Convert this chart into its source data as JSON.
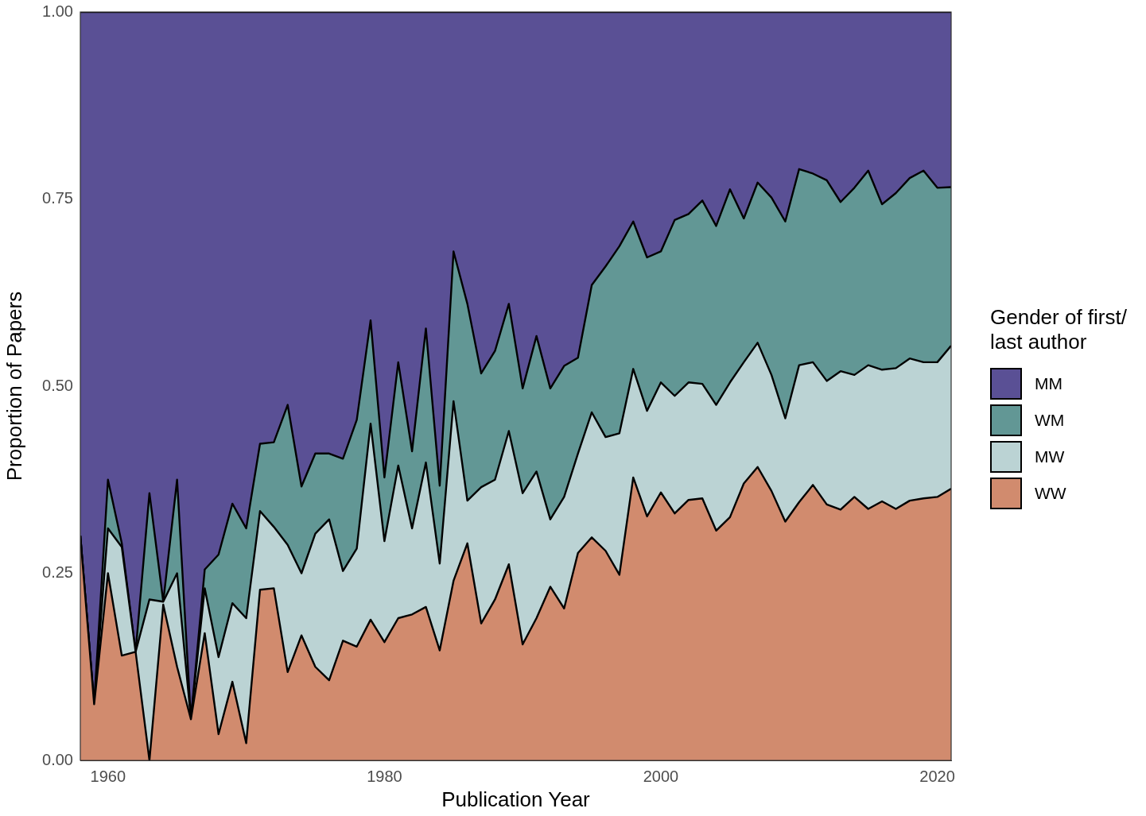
{
  "chart_data": {
    "type": "area",
    "xlabel": "Publication Year",
    "ylabel": "Proportion of Papers",
    "legend_title": "Gender of first/ last author",
    "legend": "right",
    "stacked": true,
    "x": [
      1958,
      1959,
      1960,
      1961,
      1962,
      1963,
      1964,
      1965,
      1966,
      1967,
      1968,
      1969,
      1970,
      1971,
      1972,
      1973,
      1974,
      1975,
      1976,
      1977,
      1978,
      1979,
      1980,
      1981,
      1982,
      1983,
      1984,
      1985,
      1986,
      1987,
      1988,
      1989,
      1990,
      1991,
      1992,
      1993,
      1994,
      1995,
      1996,
      1997,
      1998,
      1999,
      2000,
      2001,
      2002,
      2003,
      2004,
      2005,
      2006,
      2007,
      2008,
      2009,
      2010,
      2011,
      2012,
      2013,
      2014,
      2015,
      2016,
      2017,
      2018,
      2019,
      2020,
      2021
    ],
    "xlim": [
      1958,
      2021
    ],
    "xticks": [
      1960,
      1980,
      2000,
      2020
    ],
    "ylim": [
      0,
      1
    ],
    "yticks": [
      {
        "value": 0,
        "label": "0.00"
      },
      {
        "value": 0.25,
        "label": "0.25"
      },
      {
        "value": 0.5,
        "label": "0.50"
      },
      {
        "value": 0.75,
        "label": "0.75"
      },
      {
        "value": 1,
        "label": "1.00"
      }
    ],
    "series": [
      {
        "name": "WW",
        "color": "#d18b6e",
        "values": [
          0.3,
          0.075,
          0.25,
          0.14,
          0.145,
          0,
          0.208,
          0.125,
          0.055,
          0.17,
          0.035,
          0.105,
          0.023,
          0.228,
          0.23,
          0.118,
          0.167,
          0.125,
          0.107,
          0.16,
          0.152,
          0.188,
          0.158,
          0.19,
          0.195,
          0.205,
          0.147,
          0.24,
          0.29,
          0.183,
          0.215,
          0.262,
          0.155,
          0.19,
          0.232,
          0.203,
          0.277,
          0.298,
          0.28,
          0.248,
          0.378,
          0.326,
          0.358,
          0.33,
          0.348,
          0.35,
          0.307,
          0.325,
          0.37,
          0.392,
          0.36,
          0.319,
          0.345,
          0.368,
          0.342,
          0.335,
          0.352,
          0.336,
          0.346,
          0.336,
          0.347,
          0.35,
          0.352,
          0.363
        ]
      },
      {
        "name": "MW",
        "color": "#bbd3d4",
        "values": [
          0,
          0,
          0.06,
          0.145,
          0,
          0.215,
          0.004,
          0.125,
          0,
          0.06,
          0.103,
          0.105,
          0.167,
          0.105,
          0.082,
          0.17,
          0.083,
          0.178,
          0.215,
          0.093,
          0.131,
          0.262,
          0.135,
          0.204,
          0.115,
          0.193,
          0.116,
          0.24,
          0.057,
          0.182,
          0.16,
          0.178,
          0.202,
          0.196,
          0.09,
          0.149,
          0.133,
          0.167,
          0.152,
          0.189,
          0.145,
          0.141,
          0.147,
          0.157,
          0.157,
          0.153,
          0.168,
          0.18,
          0.162,
          0.166,
          0.155,
          0.138,
          0.183,
          0.164,
          0.165,
          0.185,
          0.163,
          0.192,
          0.176,
          0.188,
          0.19,
          0.182,
          0.18,
          0.191
        ]
      },
      {
        "name": "WM",
        "color": "#629795",
        "values": [
          0,
          0,
          0.065,
          0.005,
          0,
          0.142,
          0,
          0.125,
          0,
          0.025,
          0.137,
          0.133,
          0.12,
          0.09,
          0.113,
          0.187,
          0.116,
          0.107,
          0.088,
          0.15,
          0.172,
          0.138,
          0.085,
          0.138,
          0.103,
          0.179,
          0.104,
          0.2,
          0.263,
          0.152,
          0.172,
          0.17,
          0.14,
          0.181,
          0.175,
          0.175,
          0.128,
          0.17,
          0.228,
          0.25,
          0.197,
          0.205,
          0.175,
          0.235,
          0.225,
          0.245,
          0.239,
          0.258,
          0.192,
          0.214,
          0.237,
          0.263,
          0.262,
          0.252,
          0.268,
          0.226,
          0.25,
          0.26,
          0.221,
          0.234,
          0.241,
          0.256,
          0.233,
          0.212
        ]
      },
      {
        "name": "MM",
        "color": "#5a5095",
        "values": [
          0.7,
          0.925,
          0.625,
          0.71,
          0.855,
          0.643,
          0.788,
          0.625,
          0.945,
          0.745,
          0.725,
          0.657,
          0.69,
          0.577,
          0.575,
          0.525,
          0.634,
          0.59,
          0.59,
          0.597,
          0.545,
          0.412,
          0.622,
          0.468,
          0.587,
          0.423,
          0.633,
          0.32,
          0.39,
          0.483,
          0.453,
          0.39,
          0.503,
          0.433,
          0.503,
          0.473,
          0.462,
          0.365,
          0.34,
          0.313,
          0.28,
          0.328,
          0.32,
          0.278,
          0.27,
          0.252,
          0.286,
          0.237,
          0.276,
          0.228,
          0.248,
          0.28,
          0.21,
          0.216,
          0.225,
          0.254,
          0.235,
          0.212,
          0.257,
          0.242,
          0.222,
          0.212,
          0.235,
          0.234
        ]
      }
    ]
  }
}
